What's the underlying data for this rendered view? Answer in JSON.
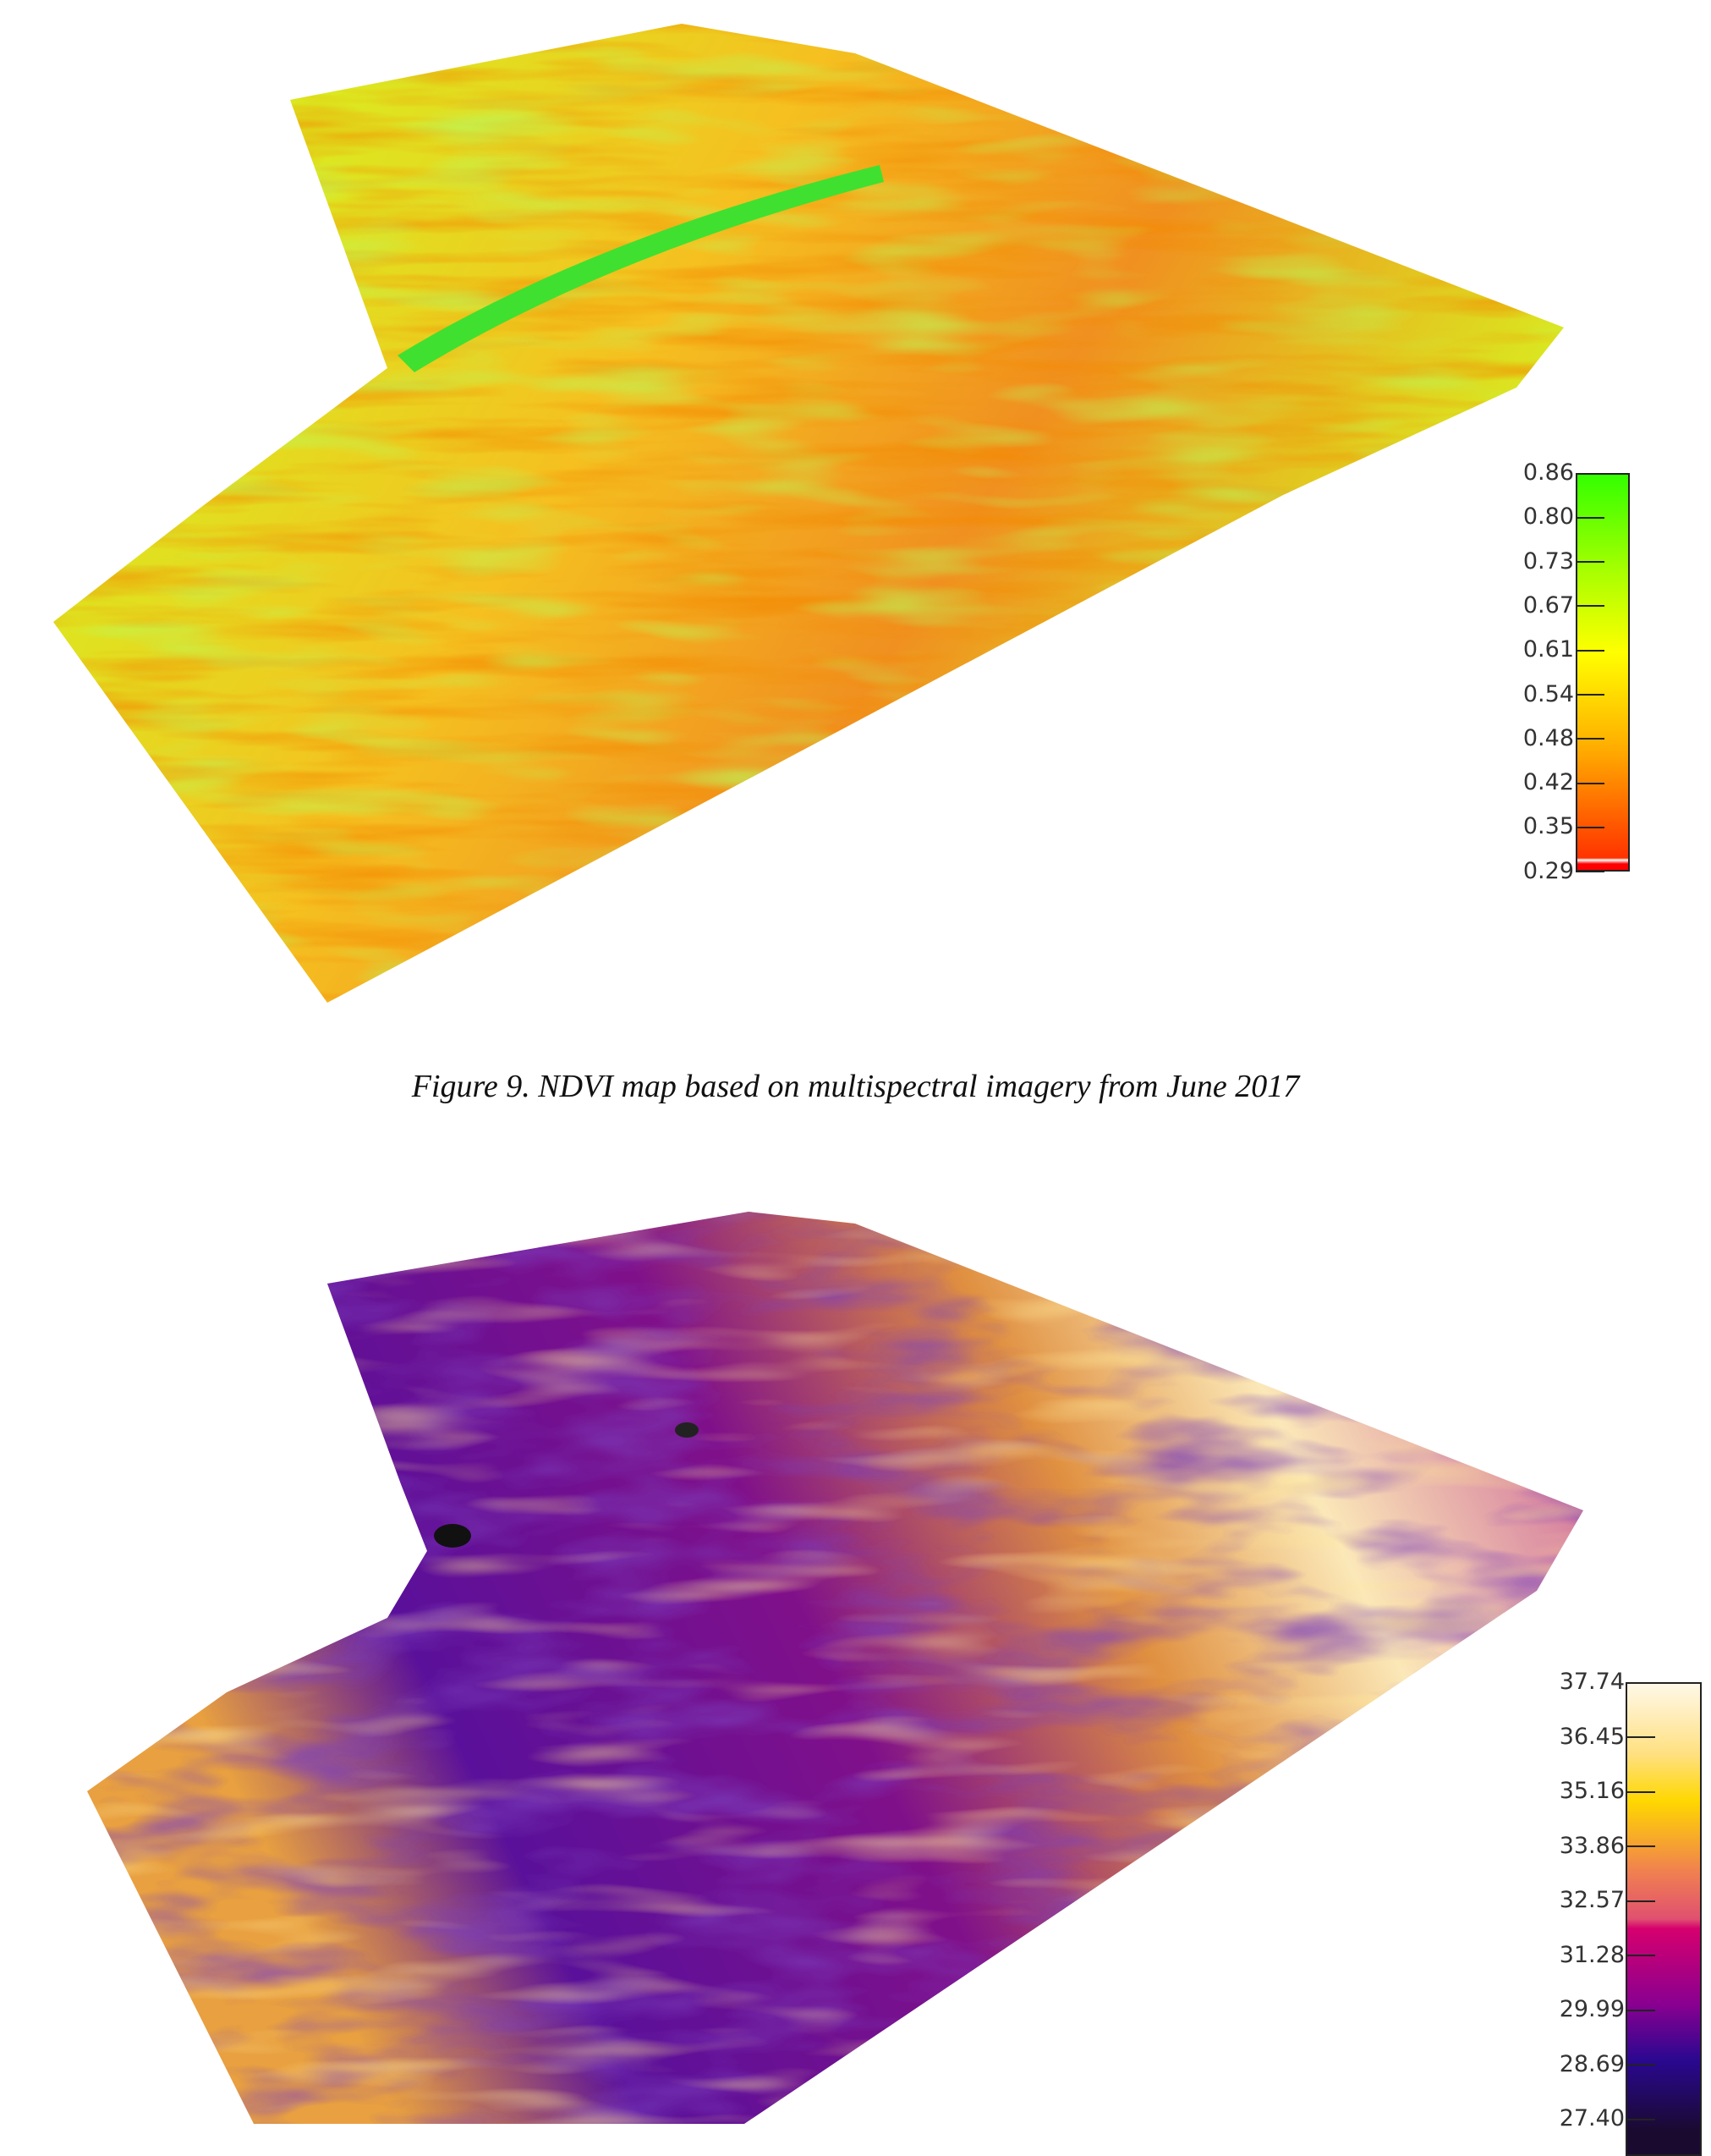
{
  "figure_ndvi": {
    "caption": "Figure 9. NDVI map based on multispectral imagery from June 2017",
    "legend": {
      "ticks": [
        "0.86",
        "0.80",
        "0.73",
        "0.67",
        "0.61",
        "0.54",
        "0.48",
        "0.42",
        "0.35",
        "0.29"
      ],
      "colors": [
        "#33ff00",
        "#aaff00",
        "#ffff00",
        "#ffaa00",
        "#ff2200"
      ]
    }
  },
  "figure_thermal": {
    "legend": {
      "ticks": [
        "37.74",
        "36.45",
        "35.16",
        "33.86",
        "32.57",
        "31.28",
        "29.99",
        "28.69",
        "27.40"
      ],
      "colors": [
        "#fff8e8",
        "#ffd700",
        "#f08050",
        "#d6006e",
        "#8a0090",
        "#2a0890",
        "#1a0a30"
      ]
    }
  }
}
